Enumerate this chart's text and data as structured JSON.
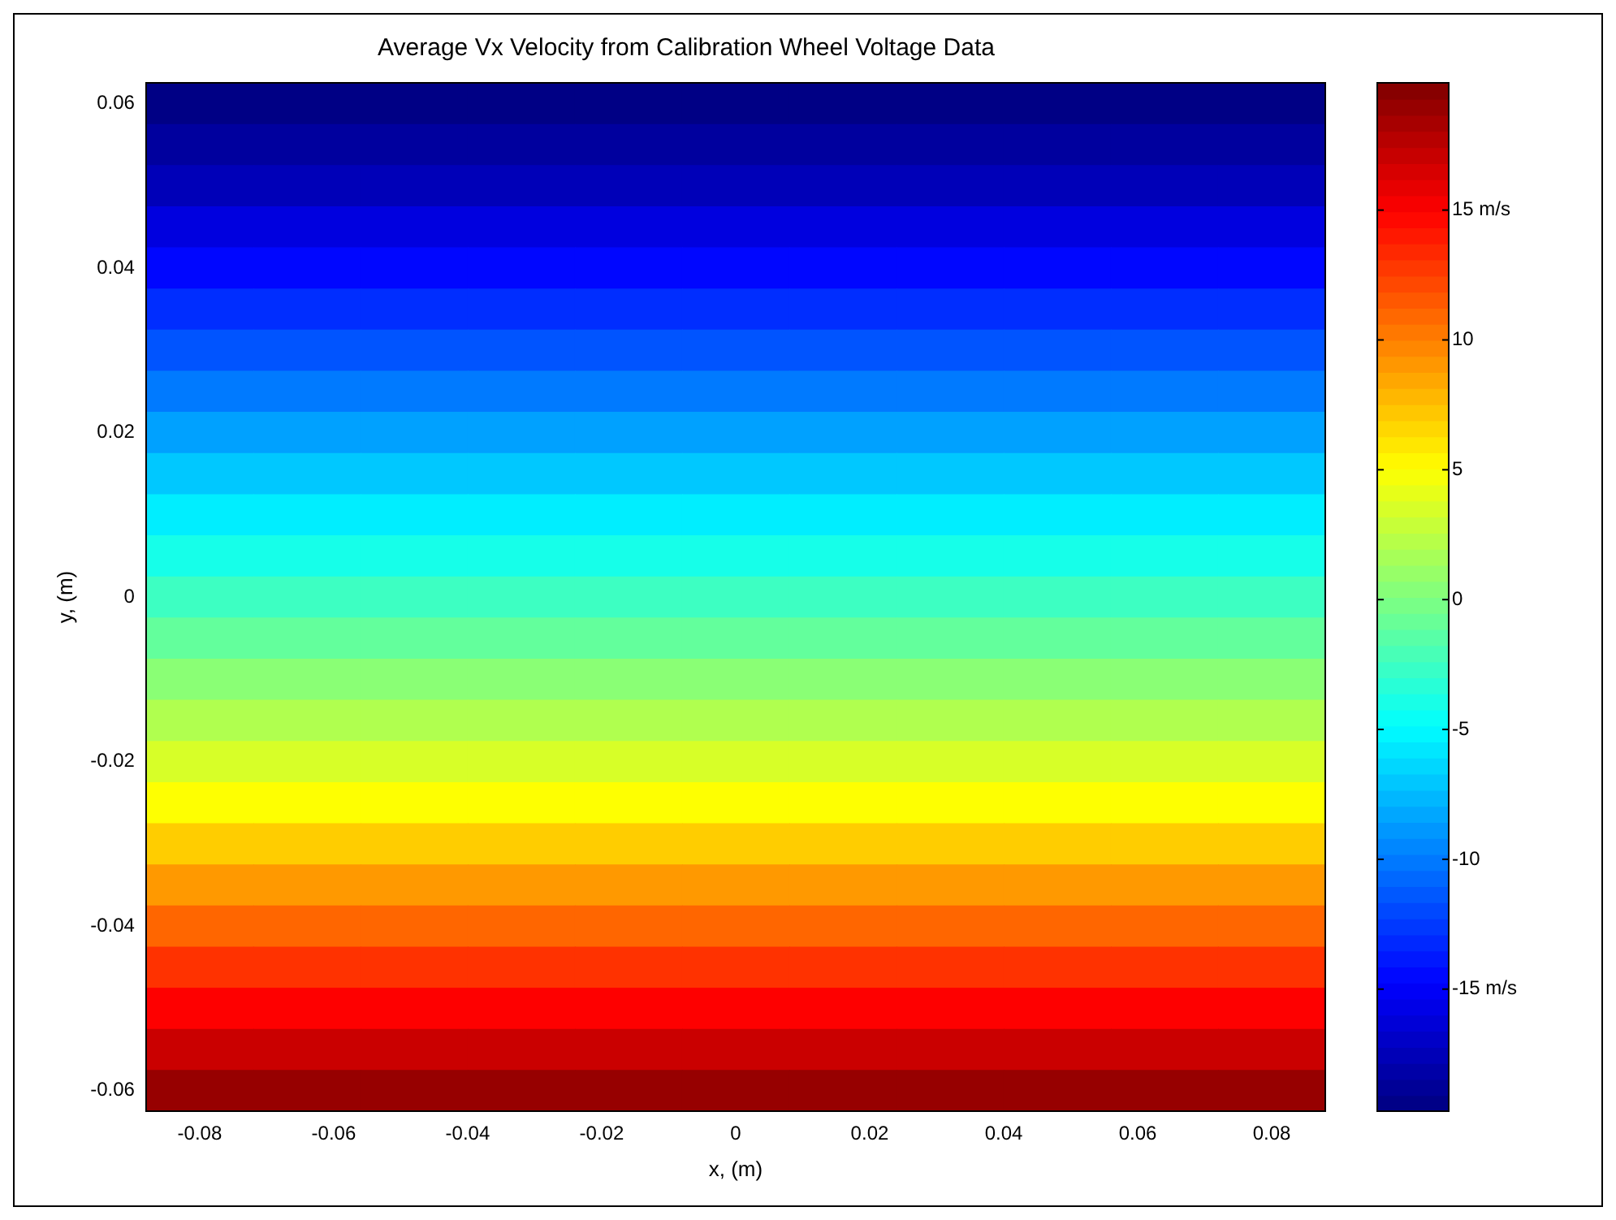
{
  "chart_data": {
    "type": "heatmap",
    "title": "Average Vx Velocity from Calibration Wheel Voltage Data",
    "xlabel": "x, (m)",
    "ylabel": "y, (m)",
    "x": [
      -0.08,
      -0.064,
      -0.048,
      -0.032,
      -0.016,
      0,
      0.016,
      0.032,
      0.048,
      0.064,
      0.08
    ],
    "y": [
      0.06,
      0.055,
      0.05,
      0.045,
      0.04,
      0.035,
      0.03,
      0.025,
      0.02,
      0.015,
      0.01,
      0.005,
      0,
      -0.005,
      -0.01,
      -0.015,
      -0.02,
      -0.025,
      -0.03,
      -0.035,
      -0.04,
      -0.045,
      -0.05,
      -0.055,
      -0.06
    ],
    "cells": [
      [
        -19.5,
        -19.5,
        -19.5,
        -19.5,
        -19.5,
        -19.5,
        -19.5,
        -19.5,
        -19.5,
        -19.5,
        -19.5
      ],
      [
        -18.5,
        -18.5,
        -18.5,
        -18.5,
        -18.5,
        -18.5,
        -18.5,
        -18.5,
        -18.5,
        -18.5,
        -18.5
      ],
      [
        -17.5,
        -17.5,
        -17.5,
        -17.5,
        -17.5,
        -17.5,
        -17.5,
        -17.5,
        -17.5,
        -17.5,
        -17.5
      ],
      [
        -16,
        -16,
        -16,
        -16,
        -16,
        -16,
        -16,
        -16,
        -16,
        -16,
        -16
      ],
      [
        -14.5,
        -14.5,
        -14.5,
        -14.5,
        -14.5,
        -14.5,
        -14.5,
        -14.5,
        -14.5,
        -14.5,
        -14.5
      ],
      [
        -13,
        -13,
        -13,
        -13,
        -13,
        -13,
        -13,
        -13,
        -13,
        -13,
        -13
      ],
      [
        -11.5,
        -11.5,
        -11.5,
        -11.5,
        -11.5,
        -11.5,
        -11.5,
        -11.5,
        -11.5,
        -11.5,
        -11.5
      ],
      [
        -10,
        -10,
        -10,
        -10,
        -10,
        -10,
        -10,
        -10,
        -10,
        -10,
        -10
      ],
      [
        -8.5,
        -8.5,
        -8.5,
        -8.5,
        -8.5,
        -8.5,
        -8.5,
        -8.5,
        -8.5,
        -8.5,
        -8.5
      ],
      [
        -7,
        -7,
        -7,
        -7,
        -7,
        -7,
        -7,
        -7,
        -7,
        -7,
        -7
      ],
      [
        -5.5,
        -5.5,
        -5.5,
        -5.5,
        -5.5,
        -5.5,
        -5.5,
        -5.5,
        -5.5,
        -5.5,
        -5.5
      ],
      [
        -4,
        -4,
        -4,
        -4,
        -4,
        -4,
        -4,
        -4,
        -4,
        -4,
        -4
      ],
      [
        -2.5,
        -2.5,
        -2.5,
        -2.5,
        -2.5,
        -2.5,
        -2.5,
        -2.5,
        -2.5,
        -2.5,
        -2.5
      ],
      [
        -1,
        -1,
        -1,
        -1,
        -1,
        -1,
        -1,
        -1,
        -1,
        -1,
        -1
      ],
      [
        0.5,
        0.5,
        0.5,
        0.5,
        0.5,
        0.5,
        0.5,
        0.5,
        0.5,
        0.5,
        0.5
      ],
      [
        2,
        2,
        2,
        2,
        2,
        2,
        2,
        2,
        2,
        2,
        2
      ],
      [
        3.5,
        3.5,
        3.5,
        3.5,
        3.5,
        3.5,
        3.5,
        3.5,
        3.5,
        3.5,
        3.5
      ],
      [
        5,
        5,
        5,
        5,
        5,
        5,
        5,
        5,
        5,
        5,
        5
      ],
      [
        7,
        7,
        7,
        7,
        7,
        7,
        7,
        7,
        7,
        7,
        7
      ],
      [
        9,
        9,
        9,
        9,
        9,
        9,
        9,
        9,
        9,
        9,
        9
      ],
      [
        11,
        11,
        11,
        11,
        11,
        11,
        11,
        11,
        11,
        11,
        11
      ],
      [
        13,
        13,
        13,
        13,
        13,
        13,
        13,
        13,
        13,
        13,
        13
      ],
      [
        15,
        15,
        15,
        15,
        15,
        15,
        15,
        15,
        15,
        15,
        15
      ],
      [
        17,
        17,
        17,
        17,
        17,
        17,
        17,
        17,
        17,
        17,
        17
      ],
      [
        19,
        19,
        19,
        19,
        19,
        19,
        19,
        19,
        19,
        19,
        19
      ]
    ],
    "xlim": [
      -0.088,
      0.088
    ],
    "xticks": [
      -0.08,
      -0.06,
      -0.04,
      -0.02,
      0,
      0.02,
      0.04,
      0.06,
      0.08
    ],
    "ylim": [
      -0.0625,
      0.0625
    ],
    "yticks": [
      -0.06,
      -0.04,
      -0.02,
      0,
      0.02,
      0.04,
      0.06
    ],
    "clim": [
      -19.7,
      19.9
    ],
    "cticks": [
      {
        "value": -15,
        "label": "-15 m/s"
      },
      -10,
      -5,
      0,
      5,
      10,
      {
        "value": 15,
        "label": "15 m/s"
      }
    ],
    "grid": false,
    "legend": false
  }
}
